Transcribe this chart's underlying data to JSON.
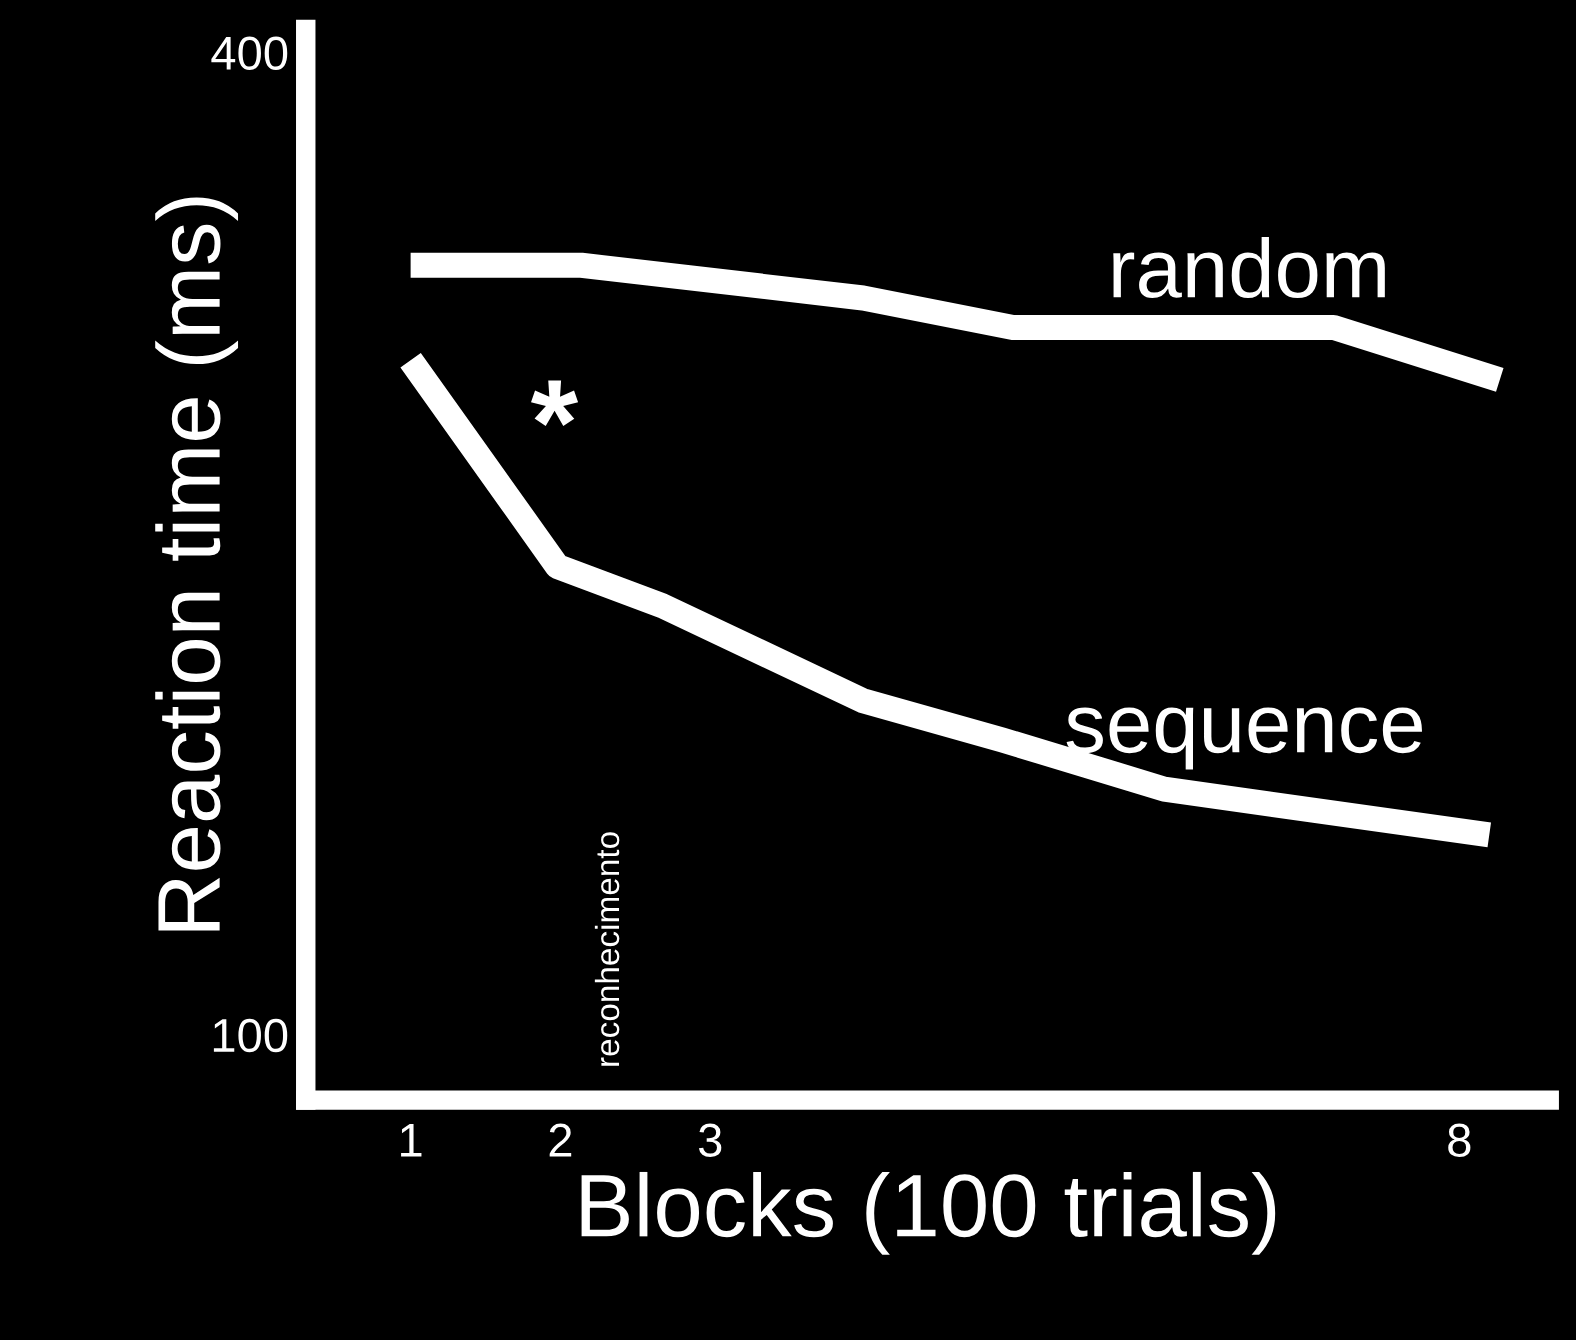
{
  "chart_data": {
    "type": "line",
    "xlabel": "Blocks (100 trials)",
    "ylabel": "Reaction time (ms)",
    "xlim": [
      0.3,
      8.6
    ],
    "ylim": [
      80,
      407
    ],
    "xticks": [
      1,
      2,
      3,
      8
    ],
    "yticks": [
      100,
      400
    ],
    "grid": false,
    "legend": false,
    "marker": "none",
    "line_style": "solid",
    "series": [
      {
        "name": "random",
        "color": "#ffffff",
        "x": [
          1,
          2.14,
          4.02,
          5.02,
          7.16,
          8.27
        ],
        "values": [
          335,
          335,
          325,
          316,
          316,
          300
        ]
      },
      {
        "name": "sequence",
        "color": "#ffffff",
        "x": [
          1,
          1.98,
          2.68,
          4.02,
          4.95,
          6.03,
          8.2
        ],
        "values": [
          306,
          243,
          231,
          202,
          190,
          175,
          161
        ]
      }
    ],
    "annotations": [
      "*",
      "reconhecimento"
    ]
  }
}
